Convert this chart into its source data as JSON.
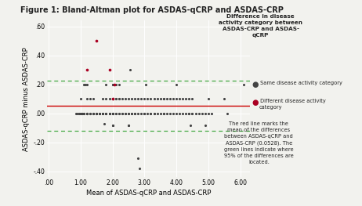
{
  "title": "Figure 1: Bland-Altman plot for ASDAS-qCRP and ASDAS-CRP",
  "xlabel": "Mean of ASDAS-qCRP and ASDAS-CRP",
  "ylabel": "ASDAS-qCRP minus ASDAS-CRP",
  "xlim": [
    -0.05,
    6.3
  ],
  "ylim": [
    -0.44,
    0.64
  ],
  "xticks": [
    0.0,
    1.0,
    2.0,
    3.0,
    4.0,
    5.0,
    6.0
  ],
  "xticklabels": [
    ".00",
    "1.00",
    "2.00",
    "3.00",
    "4.00",
    "5.00",
    "6.00"
  ],
  "yticks": [
    -0.4,
    -0.2,
    0.0,
    0.2,
    0.4,
    0.6
  ],
  "yticklabels": [
    "-.40",
    "-.20",
    ".00",
    ".20",
    ".40",
    ".60"
  ],
  "mean_line": 0.0528,
  "upper_loa": 0.228,
  "lower_loa": -0.122,
  "mean_line_color": "#cc0000",
  "loa_color": "#44aa44",
  "bg_color": "#f2f2ee",
  "top_bg_color": "#cce0f0",
  "grid_color": "#ffffff",
  "dot_color_same": "#444444",
  "dot_color_diff": "#aa0022",
  "legend_title": "Difference in disease\nactivity category between\nASDAS-CRP and ASDAS-\nqCRP",
  "legend_same": "Same disease activity category",
  "legend_diff": "Different disease activity\ncategory",
  "annotation": "The red line marks the\nmean of the differences\nbetween ASDAS-qCRP and\nASDAS-CRP (0.0528). The\ngreen lines indicate where\n95% of the differences are\nlocated.",
  "same_dots": [
    [
      0.85,
      0.0
    ],
    [
      0.9,
      0.0
    ],
    [
      0.95,
      0.0
    ],
    [
      1.0,
      0.0
    ],
    [
      1.0,
      0.0
    ],
    [
      1.0,
      0.0
    ],
    [
      1.05,
      0.0
    ],
    [
      1.05,
      0.0
    ],
    [
      1.1,
      0.0
    ],
    [
      1.1,
      0.0
    ],
    [
      1.0,
      0.1
    ],
    [
      1.1,
      0.2
    ],
    [
      1.15,
      0.2
    ],
    [
      1.2,
      0.0
    ],
    [
      1.2,
      0.0
    ],
    [
      1.2,
      0.0
    ],
    [
      1.2,
      0.0
    ],
    [
      1.2,
      0.0
    ],
    [
      1.2,
      0.1
    ],
    [
      1.2,
      0.2
    ],
    [
      1.3,
      0.0
    ],
    [
      1.3,
      0.0
    ],
    [
      1.3,
      0.0
    ],
    [
      1.3,
      0.1
    ],
    [
      1.4,
      0.0
    ],
    [
      1.4,
      0.0
    ],
    [
      1.4,
      0.0
    ],
    [
      1.4,
      0.1
    ],
    [
      1.5,
      0.0
    ],
    [
      1.5,
      0.0
    ],
    [
      1.5,
      0.0
    ],
    [
      1.5,
      0.0
    ],
    [
      1.6,
      0.0
    ],
    [
      1.6,
      0.0
    ],
    [
      1.6,
      0.0
    ],
    [
      1.7,
      0.0
    ],
    [
      1.7,
      0.0
    ],
    [
      1.7,
      0.0
    ],
    [
      1.7,
      0.1
    ],
    [
      1.75,
      -0.07
    ],
    [
      1.8,
      0.0
    ],
    [
      1.8,
      0.0
    ],
    [
      1.8,
      0.0
    ],
    [
      1.8,
      0.1
    ],
    [
      1.8,
      0.2
    ],
    [
      1.9,
      0.0
    ],
    [
      1.9,
      0.0
    ],
    [
      1.9,
      0.0
    ],
    [
      1.9,
      0.1
    ],
    [
      2.0,
      0.0
    ],
    [
      2.0,
      0.0
    ],
    [
      2.0,
      0.0
    ],
    [
      2.0,
      0.0
    ],
    [
      2.0,
      0.0
    ],
    [
      2.0,
      0.1
    ],
    [
      2.0,
      0.1
    ],
    [
      2.0,
      0.1
    ],
    [
      2.0,
      0.1
    ],
    [
      2.0,
      0.1
    ],
    [
      2.0,
      0.2
    ],
    [
      2.0,
      0.2
    ],
    [
      2.0,
      -0.08
    ],
    [
      2.0,
      -0.08
    ],
    [
      2.1,
      0.0
    ],
    [
      2.1,
      0.0
    ],
    [
      2.1,
      0.1
    ],
    [
      2.1,
      0.1
    ],
    [
      2.1,
      0.2
    ],
    [
      2.2,
      0.0
    ],
    [
      2.2,
      0.0
    ],
    [
      2.2,
      0.1
    ],
    [
      2.2,
      0.1
    ],
    [
      2.2,
      0.2
    ],
    [
      2.3,
      0.0
    ],
    [
      2.3,
      0.0
    ],
    [
      2.3,
      0.1
    ],
    [
      2.4,
      0.0
    ],
    [
      2.4,
      0.0
    ],
    [
      2.4,
      0.1
    ],
    [
      2.5,
      0.0
    ],
    [
      2.5,
      0.0
    ],
    [
      2.5,
      0.1
    ],
    [
      2.5,
      -0.08
    ],
    [
      2.5,
      -0.08
    ],
    [
      2.55,
      0.3
    ],
    [
      2.6,
      0.0
    ],
    [
      2.6,
      0.0
    ],
    [
      2.6,
      0.1
    ],
    [
      2.7,
      0.0
    ],
    [
      2.7,
      0.0
    ],
    [
      2.7,
      0.1
    ],
    [
      2.8,
      0.0
    ],
    [
      2.8,
      0.1
    ],
    [
      2.8,
      -0.31
    ],
    [
      2.85,
      -0.38
    ],
    [
      2.9,
      0.0
    ],
    [
      2.9,
      0.1
    ],
    [
      3.0,
      0.0
    ],
    [
      3.0,
      0.0
    ],
    [
      3.0,
      0.0
    ],
    [
      3.0,
      0.1
    ],
    [
      3.05,
      0.2
    ],
    [
      3.1,
      0.0
    ],
    [
      3.1,
      0.1
    ],
    [
      3.2,
      0.0
    ],
    [
      3.2,
      0.0
    ],
    [
      3.2,
      0.1
    ],
    [
      3.3,
      0.0
    ],
    [
      3.3,
      0.0
    ],
    [
      3.3,
      0.1
    ],
    [
      3.4,
      0.0
    ],
    [
      3.4,
      0.1
    ],
    [
      3.5,
      0.0
    ],
    [
      3.5,
      0.1
    ],
    [
      3.6,
      0.0
    ],
    [
      3.6,
      0.0
    ],
    [
      3.6,
      0.1
    ],
    [
      3.6,
      0.1
    ],
    [
      3.7,
      0.0
    ],
    [
      3.7,
      0.1
    ],
    [
      3.8,
      0.0
    ],
    [
      3.8,
      0.1
    ],
    [
      3.9,
      0.0
    ],
    [
      3.9,
      0.1
    ],
    [
      4.0,
      0.0
    ],
    [
      4.0,
      0.1
    ],
    [
      4.0,
      0.2
    ],
    [
      4.1,
      0.0
    ],
    [
      4.1,
      0.1
    ],
    [
      4.2,
      0.0
    ],
    [
      4.2,
      0.1
    ],
    [
      4.3,
      0.0
    ],
    [
      4.3,
      0.1
    ],
    [
      4.4,
      0.0
    ],
    [
      4.4,
      0.0
    ],
    [
      4.4,
      0.1
    ],
    [
      4.45,
      -0.08
    ],
    [
      4.5,
      0.0
    ],
    [
      4.5,
      0.0
    ],
    [
      4.5,
      0.1
    ],
    [
      4.6,
      0.0
    ],
    [
      4.7,
      0.0
    ],
    [
      4.8,
      0.0
    ],
    [
      4.9,
      0.0
    ],
    [
      4.9,
      -0.08
    ],
    [
      5.0,
      0.0
    ],
    [
      5.0,
      0.1
    ],
    [
      5.1,
      0.0
    ],
    [
      5.5,
      0.1
    ],
    [
      5.6,
      0.0
    ],
    [
      6.1,
      0.2
    ]
  ],
  "diff_dots": [
    [
      1.2,
      0.3
    ],
    [
      1.5,
      0.5
    ],
    [
      1.9,
      0.3
    ],
    [
      2.0,
      0.1
    ],
    [
      2.05,
      0.2
    ]
  ]
}
